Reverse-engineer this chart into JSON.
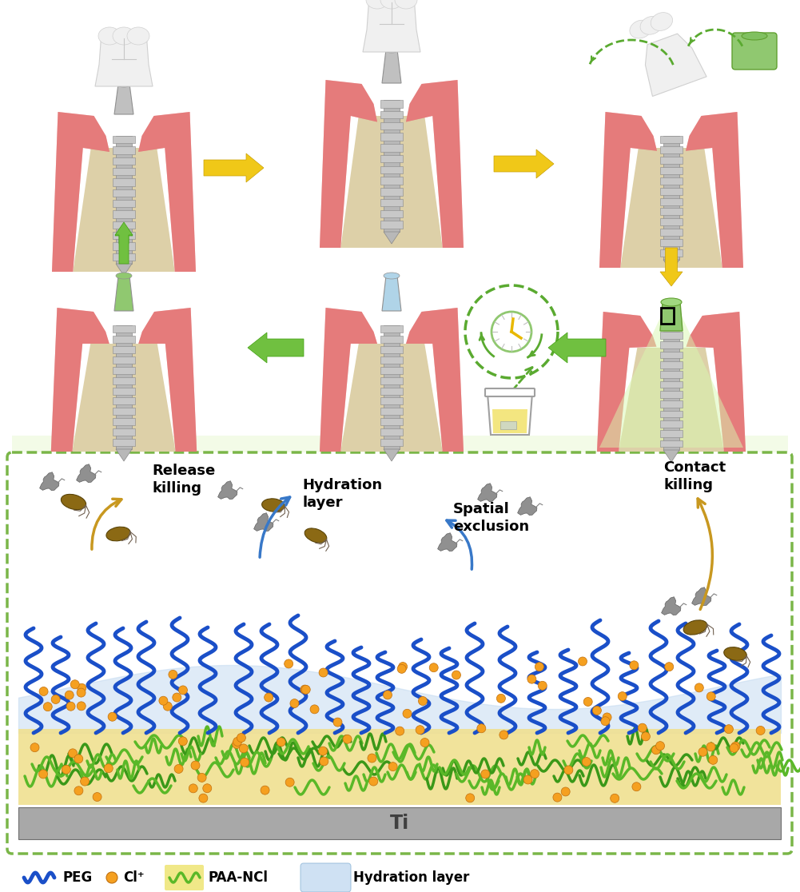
{
  "bg_color": "#ffffff",
  "dashed_box_color": "#7ab648",
  "bone_color": "#ddd0a8",
  "gum_color": "#e06868",
  "gum_inner_color": "#f0a0a0",
  "implant_color": "#b8b8b8",
  "implant_dark": "#888888",
  "crown_color": "#f0f0f0",
  "crown_edge": "#d0d0d0",
  "abutment_gold": "#d4a820",
  "abutment_green": "#90c870",
  "abutment_blue": "#b0d4e8",
  "ti_color": "#a8a8a8",
  "paa_color": "#f0e090",
  "hydration_color": "#c0d8f0",
  "peg_color": "#1a4fc8",
  "cl_color": "#f5a020",
  "paa_green": "#5ab828",
  "paa_green2": "#3a9818",
  "arrow_gold": "#e8b800",
  "arrow_green": "#5aaa30",
  "arrow_blue": "#3878c8",
  "arrow_gold_mech": "#c89820",
  "labels": {
    "release_killing": "Release\nkilling",
    "hydration_layer": "Hydration\nlayer",
    "spatial_exclusion": "Spatial\nexclusion",
    "contact_killing": "Contact\nkilling",
    "ti": "Ti"
  }
}
